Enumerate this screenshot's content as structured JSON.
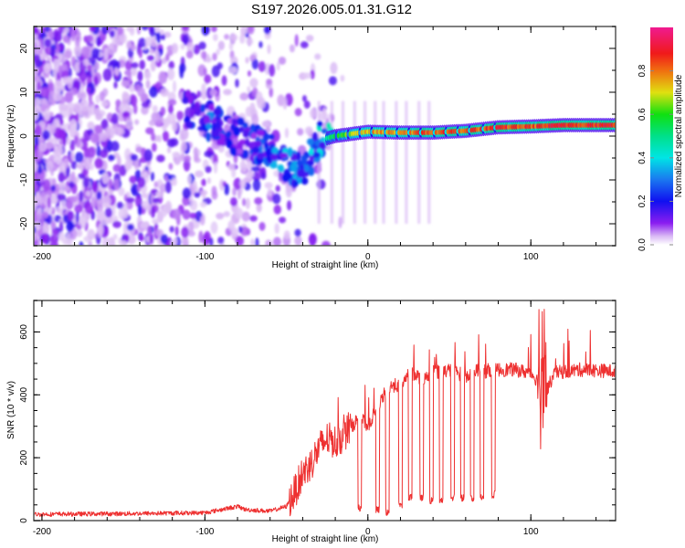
{
  "figure": {
    "title": "S197.2026.005.01.31.G12"
  },
  "chart_data": [
    {
      "type": "heatmap",
      "name": "spectrogram",
      "xlabel": "Height of straight line (km)",
      "ylabel": "Frequency (Hz)",
      "xlim": [
        -205,
        152
      ],
      "ylim": [
        -25,
        25
      ],
      "xticks": [
        -200,
        -100,
        0,
        100
      ],
      "xtick_labels": [
        "-200",
        "-100",
        "0",
        "100"
      ],
      "yticks": [
        -20,
        -10,
        0,
        10,
        20
      ],
      "ytick_labels": [
        "-20",
        "-10",
        "0",
        "10",
        "20"
      ],
      "colormap": "rainbow (white-violet-blue-cyan-green-yellow-red-magenta)",
      "colorbar": {
        "label": "Normalized spectral amplitude",
        "range": [
          0.0,
          1.0
        ],
        "ticks": [
          0.0,
          0.2,
          0.4,
          0.6,
          0.8
        ],
        "tick_labels": [
          "0.0",
          "0.2",
          "0.4",
          "0.6",
          "0.8"
        ]
      },
      "description": "Scattered low-amplitude noise for heights below about -60 km; a descending signal trace from about -110 km (+6 Hz) down to -35 km (-10 Hz); a strong coherent tone near 0 to +3 Hz from about -25 km to 152 km with periodic dropouts.",
      "signal_trace": {
        "x": [
          -110,
          -100,
          -90,
          -80,
          -70,
          -60,
          -50,
          -40,
          -30,
          -20,
          0,
          20,
          40,
          60,
          80,
          100,
          120,
          150
        ],
        "freq_hz": [
          6,
          4,
          2,
          0,
          -2,
          -3,
          -6,
          -8,
          -1,
          0,
          1,
          0.8,
          0.8,
          1.2,
          2.0,
          2.2,
          2.5,
          2.5
        ],
        "amplitude": [
          0.2,
          0.3,
          0.25,
          0.2,
          0.25,
          0.3,
          0.35,
          0.3,
          0.4,
          0.6,
          0.8,
          0.85,
          0.9,
          0.9,
          0.92,
          0.9,
          0.95,
          0.95
        ]
      }
    },
    {
      "type": "line",
      "name": "snr",
      "xlabel": "Height of straight line (km)",
      "ylabel": "SNR (10 * v/v)",
      "xlim": [
        -205,
        152
      ],
      "ylim": [
        0,
        700
      ],
      "xticks": [
        -200,
        -100,
        0,
        100
      ],
      "xtick_labels": [
        "-200",
        "-100",
        "0",
        "100"
      ],
      "yticks": [
        0,
        200,
        400,
        600
      ],
      "ytick_labels": [
        "0",
        "200",
        "400",
        "600"
      ],
      "series": [
        {
          "name": "SNR",
          "color": "#ee3030",
          "x": [
            -205,
            -150,
            -100,
            -80,
            -75,
            -60,
            -50,
            -45,
            -40,
            -35,
            -30,
            -25,
            -20,
            -15,
            -10,
            -5,
            0,
            5,
            10,
            15,
            20,
            25,
            30,
            35,
            40,
            45,
            50,
            55,
            60,
            65,
            70,
            75,
            80,
            90,
            100,
            105,
            108,
            110,
            115,
            130,
            152
          ],
          "y": [
            20,
            22,
            25,
            45,
            35,
            30,
            45,
            90,
            150,
            180,
            230,
            260,
            250,
            270,
            300,
            330,
            300,
            350,
            400,
            430,
            430,
            470,
            460,
            450,
            480,
            470,
            480,
            470,
            460,
            480,
            470,
            480,
            480,
            480,
            470,
            440,
            500,
            420,
            470,
            480,
            475
          ]
        }
      ],
      "dropouts": {
        "x": [
          -5,
          6,
          12,
          20,
          26,
          33,
          39,
          45,
          52,
          58,
          64,
          70,
          77
        ],
        "min_y": [
          30,
          20,
          15,
          40,
          60,
          60,
          50,
          50,
          60,
          60,
          60,
          60,
          70
        ]
      },
      "annotations": "Periodic sharp dropouts to near 0 between about -5 km and 80 km; spike to about 690 and drop to about 200 near 107 km."
    }
  ]
}
